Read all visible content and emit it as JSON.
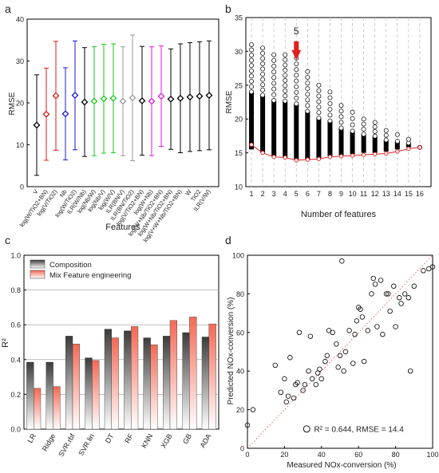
{
  "chart_data": [
    {
      "panel": "a",
      "type": "scatter",
      "ylabel": "RMSE",
      "xlabel": "Features",
      "ylim": [
        0,
        40
      ],
      "yticks": [
        0,
        10,
        20,
        30,
        40
      ],
      "categories": [
        "V",
        "log(W/TiO2+BN)",
        "log(V/TiO2)",
        "Nb",
        "log(W/TiO2)",
        "ILR(W/Nb)",
        "log(Nb/W)",
        "log(Nb/V)",
        "log(W/V)",
        "ILR(BN/V)",
        "ILR(BN/TiO2)",
        "log(V/TiO2+BN)",
        "log(W+Nb)",
        "log(W+Nb/TiO2+BN)",
        "log(W+Nb/TiO2+BN)",
        "log(V+W+Nb/TiO2+BN)",
        "W",
        "TiO2",
        "ILR(V/W)"
      ],
      "series": [
        {
          "mean": [
            14.7,
            17.3,
            21.7,
            17.4,
            21.8,
            20.2,
            20.4,
            21.0,
            21.1,
            20.4,
            21.2,
            20.5,
            20.4,
            21.6,
            20.9,
            21.1,
            21.4,
            21.6,
            21.8
          ],
          "err": [
            12,
            11,
            13,
            11,
            13,
            13,
            13,
            13,
            13,
            13,
            15,
            13,
            13,
            12,
            12,
            13,
            13,
            13,
            13
          ],
          "colors": [
            "#000000",
            "#e01818",
            "#e01818",
            "#1818d8",
            "#1818d8",
            "#000000",
            "#18c818",
            "#18c818",
            "#18c818",
            "#999999",
            "#999999",
            "#000000",
            "#e018e0",
            "#e018e0",
            "#000000",
            "#000000",
            "#000000",
            "#000000",
            "#000000"
          ]
        }
      ]
    },
    {
      "panel": "b",
      "type": "scatter",
      "ylabel": "RMSE",
      "xlabel": "Number of features",
      "xticks": [
        1,
        2,
        3,
        4,
        5,
        6,
        7,
        8,
        9,
        10,
        11,
        12,
        13,
        14,
        15,
        16
      ],
      "ylim": [
        10,
        35
      ],
      "yticks": [
        10,
        15,
        20,
        25,
        30,
        35
      ],
      "annotation": "5",
      "spread": [
        {
          "x": 1,
          "lo": 15.5,
          "hi": 31
        },
        {
          "x": 2,
          "lo": 15.0,
          "hi": 30.5
        },
        {
          "x": 3,
          "lo": 14.5,
          "hi": 29.5
        },
        {
          "x": 4,
          "lo": 14.3,
          "hi": 29.5
        },
        {
          "x": 5,
          "lo": 14.0,
          "hi": 29.0
        },
        {
          "x": 6,
          "lo": 14.0,
          "hi": 27.0
        },
        {
          "x": 7,
          "lo": 14.2,
          "hi": 25.0
        },
        {
          "x": 8,
          "lo": 14.5,
          "hi": 24.0
        },
        {
          "x": 9,
          "lo": 14.6,
          "hi": 22.0
        },
        {
          "x": 10,
          "lo": 14.8,
          "hi": 21.0
        },
        {
          "x": 11,
          "lo": 15.0,
          "hi": 20.0
        },
        {
          "x": 12,
          "lo": 15.0,
          "hi": 19.5
        },
        {
          "x": 13,
          "lo": 15.2,
          "hi": 18.3
        },
        {
          "x": 14,
          "lo": 15.5,
          "hi": 17.7
        },
        {
          "x": 15,
          "lo": 15.8,
          "hi": 17.0
        },
        {
          "x": 16,
          "lo": 15.8,
          "hi": 15.8
        }
      ],
      "min_line": [
        16.2,
        15.0,
        14.4,
        14.3,
        13.9,
        14.0,
        14.1,
        14.4,
        14.5,
        14.6,
        14.7,
        14.8,
        14.9,
        15.2,
        15.6,
        15.8
      ]
    },
    {
      "panel": "c",
      "type": "bar",
      "ylabel": "R²",
      "ylim": [
        0,
        1
      ],
      "yticks": [
        "0.0",
        "0.2",
        "0.4",
        "0.6",
        "0.8",
        "1.0"
      ],
      "categories": [
        "LR",
        "Ridge",
        "SVR.rbf",
        "SVR.lin",
        "DT",
        "RF",
        "KNN",
        "XGB",
        "GB",
        "ADA"
      ],
      "series": [
        {
          "name": "Composition",
          "color": "#3c3c3c",
          "values": [
            0.385,
            0.385,
            0.535,
            0.41,
            0.575,
            0.565,
            0.525,
            0.535,
            0.555,
            0.53
          ]
        },
        {
          "name": "Mix Feature engineering",
          "color": "#f26a55",
          "values": [
            0.235,
            0.245,
            0.49,
            0.395,
            0.525,
            0.59,
            0.485,
            0.625,
            0.645,
            0.605
          ]
        }
      ]
    },
    {
      "panel": "d",
      "type": "scatter",
      "xlabel": "Measured NOx-conversion (%)",
      "ylabel": "Predicted NOx-conversion (%)",
      "xlim": [
        0,
        100
      ],
      "ylim": [
        0,
        100
      ],
      "xticks": [
        0,
        20,
        40,
        60,
        80,
        100
      ],
      "yticks": [
        0,
        20,
        40,
        60,
        80,
        100
      ],
      "legend": "R² = 0.644, RMSE = 14.4",
      "points": [
        [
          0,
          12
        ],
        [
          3,
          20
        ],
        [
          15,
          43
        ],
        [
          18,
          29
        ],
        [
          20,
          36
        ],
        [
          21,
          24
        ],
        [
          22,
          27
        ],
        [
          23,
          47
        ],
        [
          25,
          26
        ],
        [
          26,
          33
        ],
        [
          27,
          34
        ],
        [
          28,
          60
        ],
        [
          30,
          30
        ],
        [
          31,
          33
        ],
        [
          33,
          40
        ],
        [
          34,
          58
        ],
        [
          35,
          36
        ],
        [
          37,
          33
        ],
        [
          38,
          39
        ],
        [
          39,
          41
        ],
        [
          40,
          36
        ],
        [
          42,
          45
        ],
        [
          43,
          48
        ],
        [
          44,
          61
        ],
        [
          46,
          60
        ],
        [
          48,
          54
        ],
        [
          49,
          42
        ],
        [
          50,
          48
        ],
        [
          51,
          97
        ],
        [
          52,
          40
        ],
        [
          53,
          50
        ],
        [
          55,
          61
        ],
        [
          57,
          44
        ],
        [
          58,
          59
        ],
        [
          59,
          66
        ],
        [
          60,
          73
        ],
        [
          61,
          72
        ],
        [
          62,
          68
        ],
        [
          63,
          45
        ],
        [
          65,
          61
        ],
        [
          67,
          80
        ],
        [
          68,
          88
        ],
        [
          69,
          85
        ],
        [
          70,
          63
        ],
        [
          72,
          87
        ],
        [
          73,
          59
        ],
        [
          75,
          80
        ],
        [
          76,
          80
        ],
        [
          77,
          71
        ],
        [
          79,
          84
        ],
        [
          80,
          63
        ],
        [
          82,
          78
        ],
        [
          83,
          75
        ],
        [
          85,
          80
        ],
        [
          87,
          78
        ],
        [
          88,
          40
        ],
        [
          90,
          84
        ],
        [
          95,
          92
        ],
        [
          98,
          93
        ],
        [
          100,
          94
        ]
      ]
    }
  ]
}
